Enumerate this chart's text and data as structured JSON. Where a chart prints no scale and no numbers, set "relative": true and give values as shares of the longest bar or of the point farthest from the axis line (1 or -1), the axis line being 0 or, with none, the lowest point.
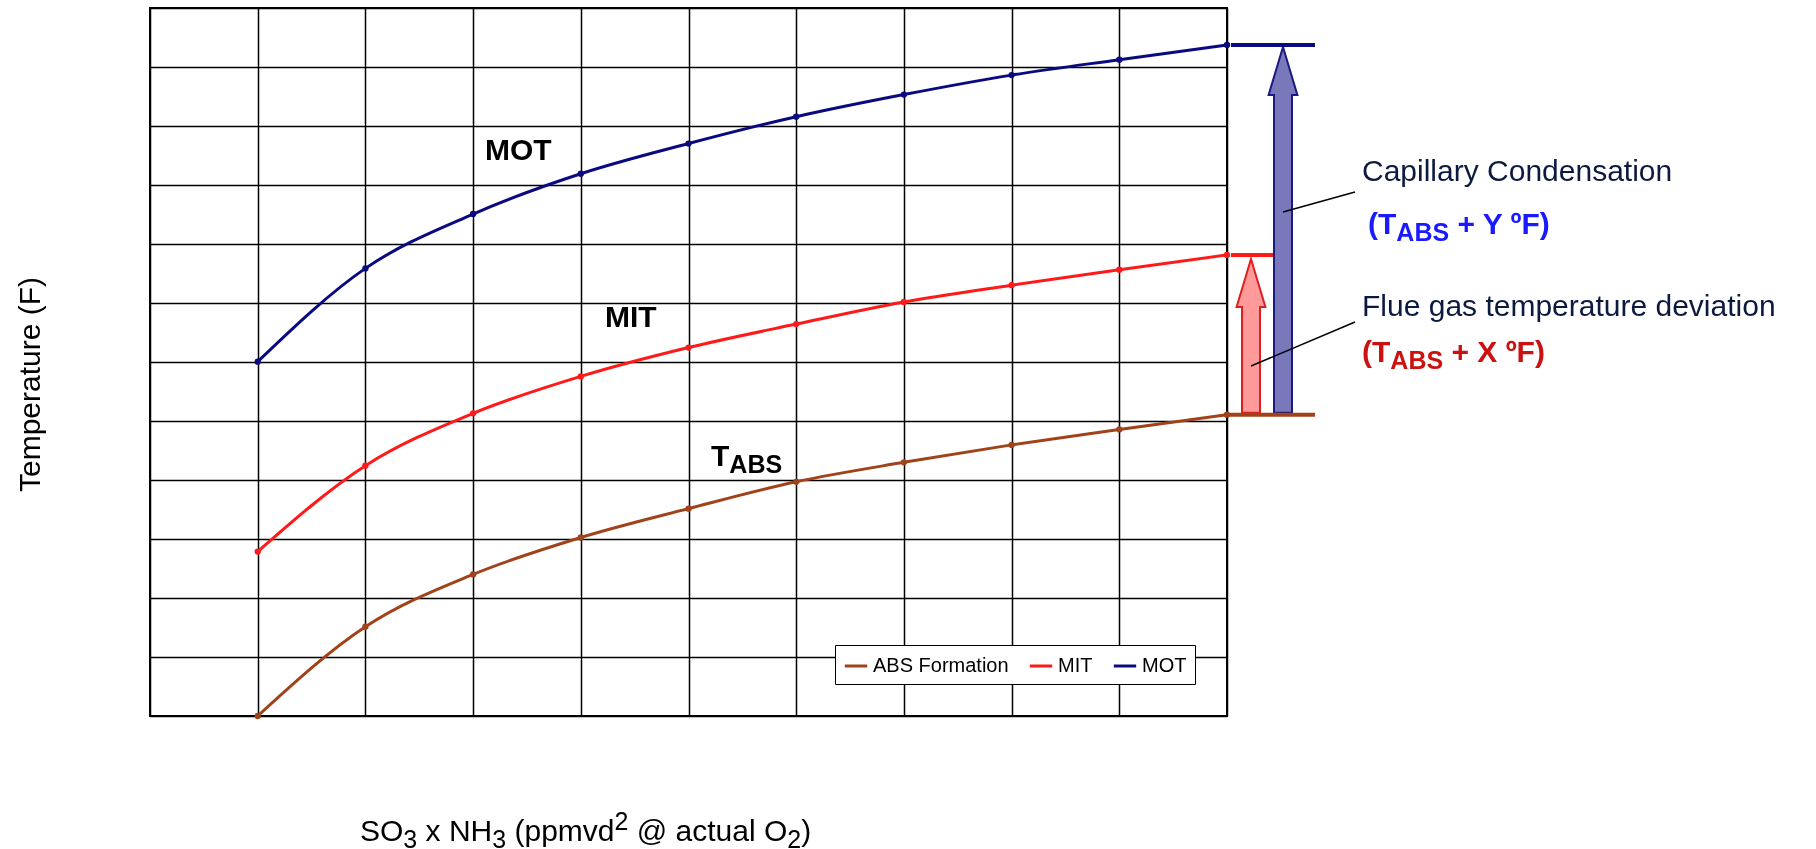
{
  "chart_data": {
    "type": "line",
    "relative": true,
    "xlabel": "SO$_{3}$ x NH$_{3}$  (ppmvd$^{2}$ @ actual O$_{2}$)",
    "ylabel": "Temperature (F)",
    "categories": [
      null,
      null,
      null,
      null,
      null,
      null,
      null,
      null,
      null,
      null
    ],
    "series": [
      {
        "name": "ABS Formation",
        "color": "#a0421a",
        "values": [
          0,
          0.133,
          0.211,
          0.266,
          0.309,
          0.349,
          0.378,
          0.404,
          0.427,
          0.449
        ]
      },
      {
        "name": "MIT",
        "color": "#ff1a1a",
        "values": [
          0.245,
          0.373,
          0.451,
          0.506,
          0.549,
          0.584,
          0.617,
          0.642,
          0.665,
          0.687
        ]
      },
      {
        "name": "MOT",
        "color": "#0a0a80",
        "values": [
          0.528,
          0.667,
          0.748,
          0.808,
          0.853,
          0.893,
          0.926,
          0.955,
          0.978,
          1
        ]
      }
    ],
    "annotations": [
      "MOT",
      "MIT",
      "T$_{ABS}$",
      "Capillary Condensation",
      "(T$_{ABS}$ + Y  ºF)",
      "Flue gas temperature deviation (T$_{ABS}$ + X  ºF)"
    ],
    "grid": true,
    "legend": "bottom right",
    "marker": "circle",
    "line_style": "solid"
  }
}
